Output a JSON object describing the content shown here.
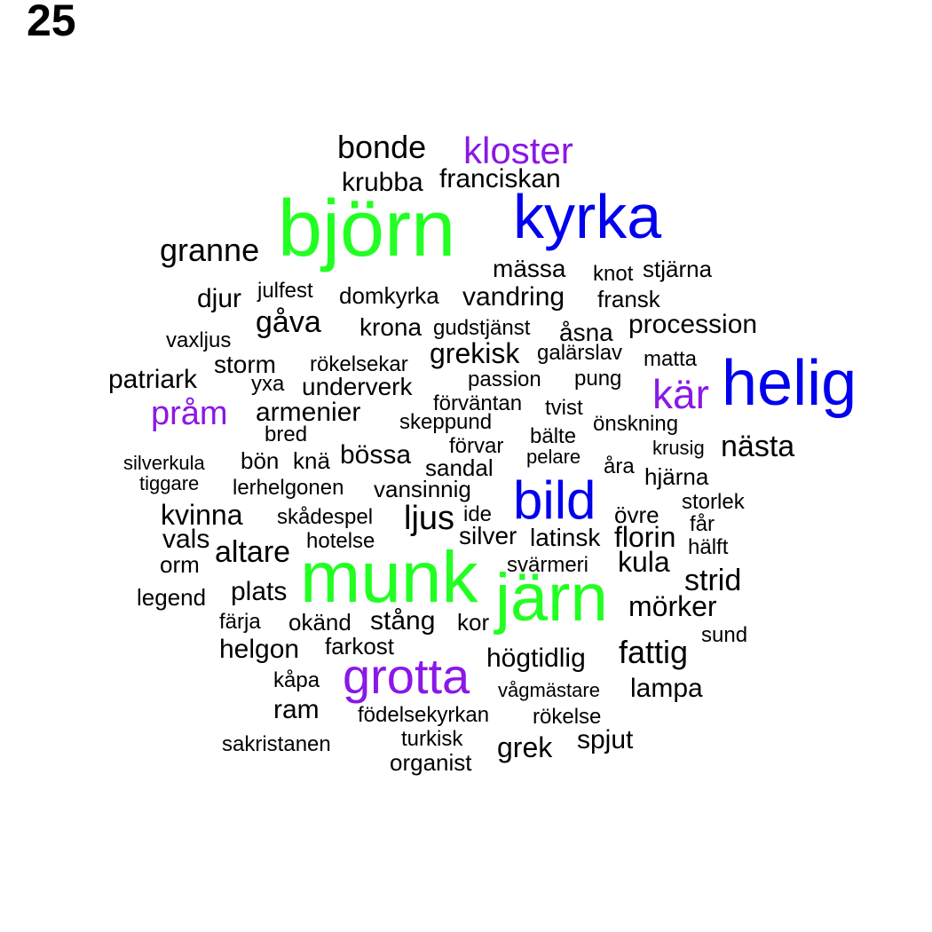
{
  "page_number": "25",
  "colors": {
    "default": "#000000",
    "green": "#22ff22",
    "blue": "#0000ee",
    "purple": "#8a18e6"
  },
  "words": [
    {
      "text": "bonde"
    },
    {
      "text": "kloster",
      "color": "purple"
    },
    {
      "text": "krubba"
    },
    {
      "text": "franciskan"
    },
    {
      "text": "björn",
      "color": "green"
    },
    {
      "text": "kyrka",
      "color": "blue"
    },
    {
      "text": "granne"
    },
    {
      "text": "mässa"
    },
    {
      "text": "knot"
    },
    {
      "text": "stjärna"
    },
    {
      "text": "djur"
    },
    {
      "text": "julfest"
    },
    {
      "text": "domkyrka"
    },
    {
      "text": "vandring"
    },
    {
      "text": "fransk"
    },
    {
      "text": "gåva"
    },
    {
      "text": "krona"
    },
    {
      "text": "gudstjänst"
    },
    {
      "text": "åsna"
    },
    {
      "text": "procession"
    },
    {
      "text": "vaxljus"
    },
    {
      "text": "grekisk"
    },
    {
      "text": "galärslav"
    },
    {
      "text": "storm"
    },
    {
      "text": "rökelsekar"
    },
    {
      "text": "matta"
    },
    {
      "text": "helig",
      "color": "blue"
    },
    {
      "text": "patriark"
    },
    {
      "text": "yxa"
    },
    {
      "text": "underverk"
    },
    {
      "text": "passion"
    },
    {
      "text": "pung"
    },
    {
      "text": "kär",
      "color": "purple"
    },
    {
      "text": "förväntan"
    },
    {
      "text": "tvist"
    },
    {
      "text": "pråm",
      "color": "purple"
    },
    {
      "text": "armenier"
    },
    {
      "text": "skeppund"
    },
    {
      "text": "önskning"
    },
    {
      "text": "bred"
    },
    {
      "text": "bälte"
    },
    {
      "text": "förvar"
    },
    {
      "text": "krusig"
    },
    {
      "text": "nästa"
    },
    {
      "text": "silverkula"
    },
    {
      "text": "bön"
    },
    {
      "text": "knä"
    },
    {
      "text": "bössa"
    },
    {
      "text": "pelare"
    },
    {
      "text": "sandal"
    },
    {
      "text": "åra"
    },
    {
      "text": "hjärna"
    },
    {
      "text": "tiggare"
    },
    {
      "text": "lerhelgonen"
    },
    {
      "text": "vansinnig"
    },
    {
      "text": "bild",
      "color": "blue"
    },
    {
      "text": "storlek"
    },
    {
      "text": "kvinna"
    },
    {
      "text": "skådespel"
    },
    {
      "text": "ljus"
    },
    {
      "text": "ide"
    },
    {
      "text": "övre"
    },
    {
      "text": "får"
    },
    {
      "text": "vals"
    },
    {
      "text": "hotelse"
    },
    {
      "text": "silver"
    },
    {
      "text": "latinsk"
    },
    {
      "text": "florin"
    },
    {
      "text": "hälft"
    },
    {
      "text": "altare"
    },
    {
      "text": "orm"
    },
    {
      "text": "svärmeri"
    },
    {
      "text": "kula"
    },
    {
      "text": "munk",
      "color": "green"
    },
    {
      "text": "strid"
    },
    {
      "text": "legend"
    },
    {
      "text": "plats"
    },
    {
      "text": "järn",
      "color": "green"
    },
    {
      "text": "mörker"
    },
    {
      "text": "färja"
    },
    {
      "text": "okänd"
    },
    {
      "text": "stång"
    },
    {
      "text": "kor"
    },
    {
      "text": "sund"
    },
    {
      "text": "farkost"
    },
    {
      "text": "helgon"
    },
    {
      "text": "fattig"
    },
    {
      "text": "högtidlig"
    },
    {
      "text": "grotta",
      "color": "purple"
    },
    {
      "text": "kåpa"
    },
    {
      "text": "vågmästare"
    },
    {
      "text": "lampa"
    },
    {
      "text": "ram"
    },
    {
      "text": "födelsekyrkan"
    },
    {
      "text": "rökelse"
    },
    {
      "text": "turkisk"
    },
    {
      "text": "spjut"
    },
    {
      "text": "sakristanen"
    },
    {
      "text": "grek"
    },
    {
      "text": "organist"
    }
  ]
}
